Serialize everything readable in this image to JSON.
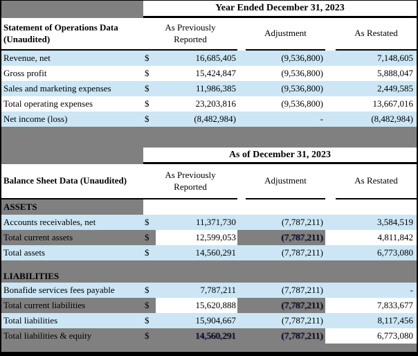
{
  "colors": {
    "row_highlight_blue": "#cce6f5",
    "background_gray": "#808080"
  },
  "operations_table": {
    "period_header": "Year Ended December 31, 2023",
    "row_header": "Statement of Operations Data (Unaudited)",
    "columns": {
      "previously": "As Previously Reported",
      "adjustment": "Adjustment",
      "restated": "As Restated"
    },
    "currency": "$",
    "rows": [
      {
        "label": "Revenue, net",
        "previously": "16,685,405",
        "adjustment": "(9,536,800)",
        "restated": "7,148,605"
      },
      {
        "label": "Gross profit",
        "previously": "15,424,847",
        "adjustment": "(9,536,800)",
        "restated": "5,888,047"
      },
      {
        "label": "Sales and marketing expenses",
        "previously": "11,986,385",
        "adjustment": "(9,536,800)",
        "restated": "2,449,585"
      },
      {
        "label": "Total operating expenses",
        "previously": "23,203,816",
        "adjustment": "(9,536,800)",
        "restated": "13,667,016"
      },
      {
        "label": "Net income (loss)",
        "previously": "(8,482,984)",
        "adjustment": "-",
        "restated": "(8,482,984)"
      }
    ]
  },
  "balance_table": {
    "period_header": "As of December 31, 2023",
    "row_header": "Balance Sheet Data (Unaudited)",
    "columns": {
      "previously": "As Previously Reported",
      "adjustment": "Adjustment",
      "restated": "As Restated"
    },
    "currency": "$",
    "assets_section_label": "ASSETS",
    "liabilities_section_label": "LIABILITIES",
    "asset_rows": [
      {
        "label": "Accounts receivables, net",
        "previously": "11,371,730",
        "adjustment": "(7,787,211)",
        "restated": "3,584,519"
      },
      {
        "label": "Total current assets",
        "previously": "12,599,053",
        "adjustment": "(7,787,211)",
        "restated": "4,811,842"
      },
      {
        "label": "Total assets",
        "previously": "14,560,291",
        "adjustment": "(7,787,211)",
        "restated": "6,773,080"
      }
    ],
    "liability_rows": [
      {
        "label": "Bonafide services fees payable",
        "previously": "7,787,211",
        "adjustment": "(7,787,211)",
        "restated": "-"
      },
      {
        "label": "Total current liabilities",
        "previously": "15,620,888",
        "adjustment": "(7,787,211)",
        "restated": "7,833,677"
      },
      {
        "label": "Total liabilities",
        "previously": "15,904,667",
        "adjustment": "(7,787,211)",
        "restated": "8,117,456"
      },
      {
        "label": "Total liabilities & equity",
        "previously": "14,560,291",
        "adjustment": "(7,787,211)",
        "restated": "6,773,080"
      }
    ]
  }
}
